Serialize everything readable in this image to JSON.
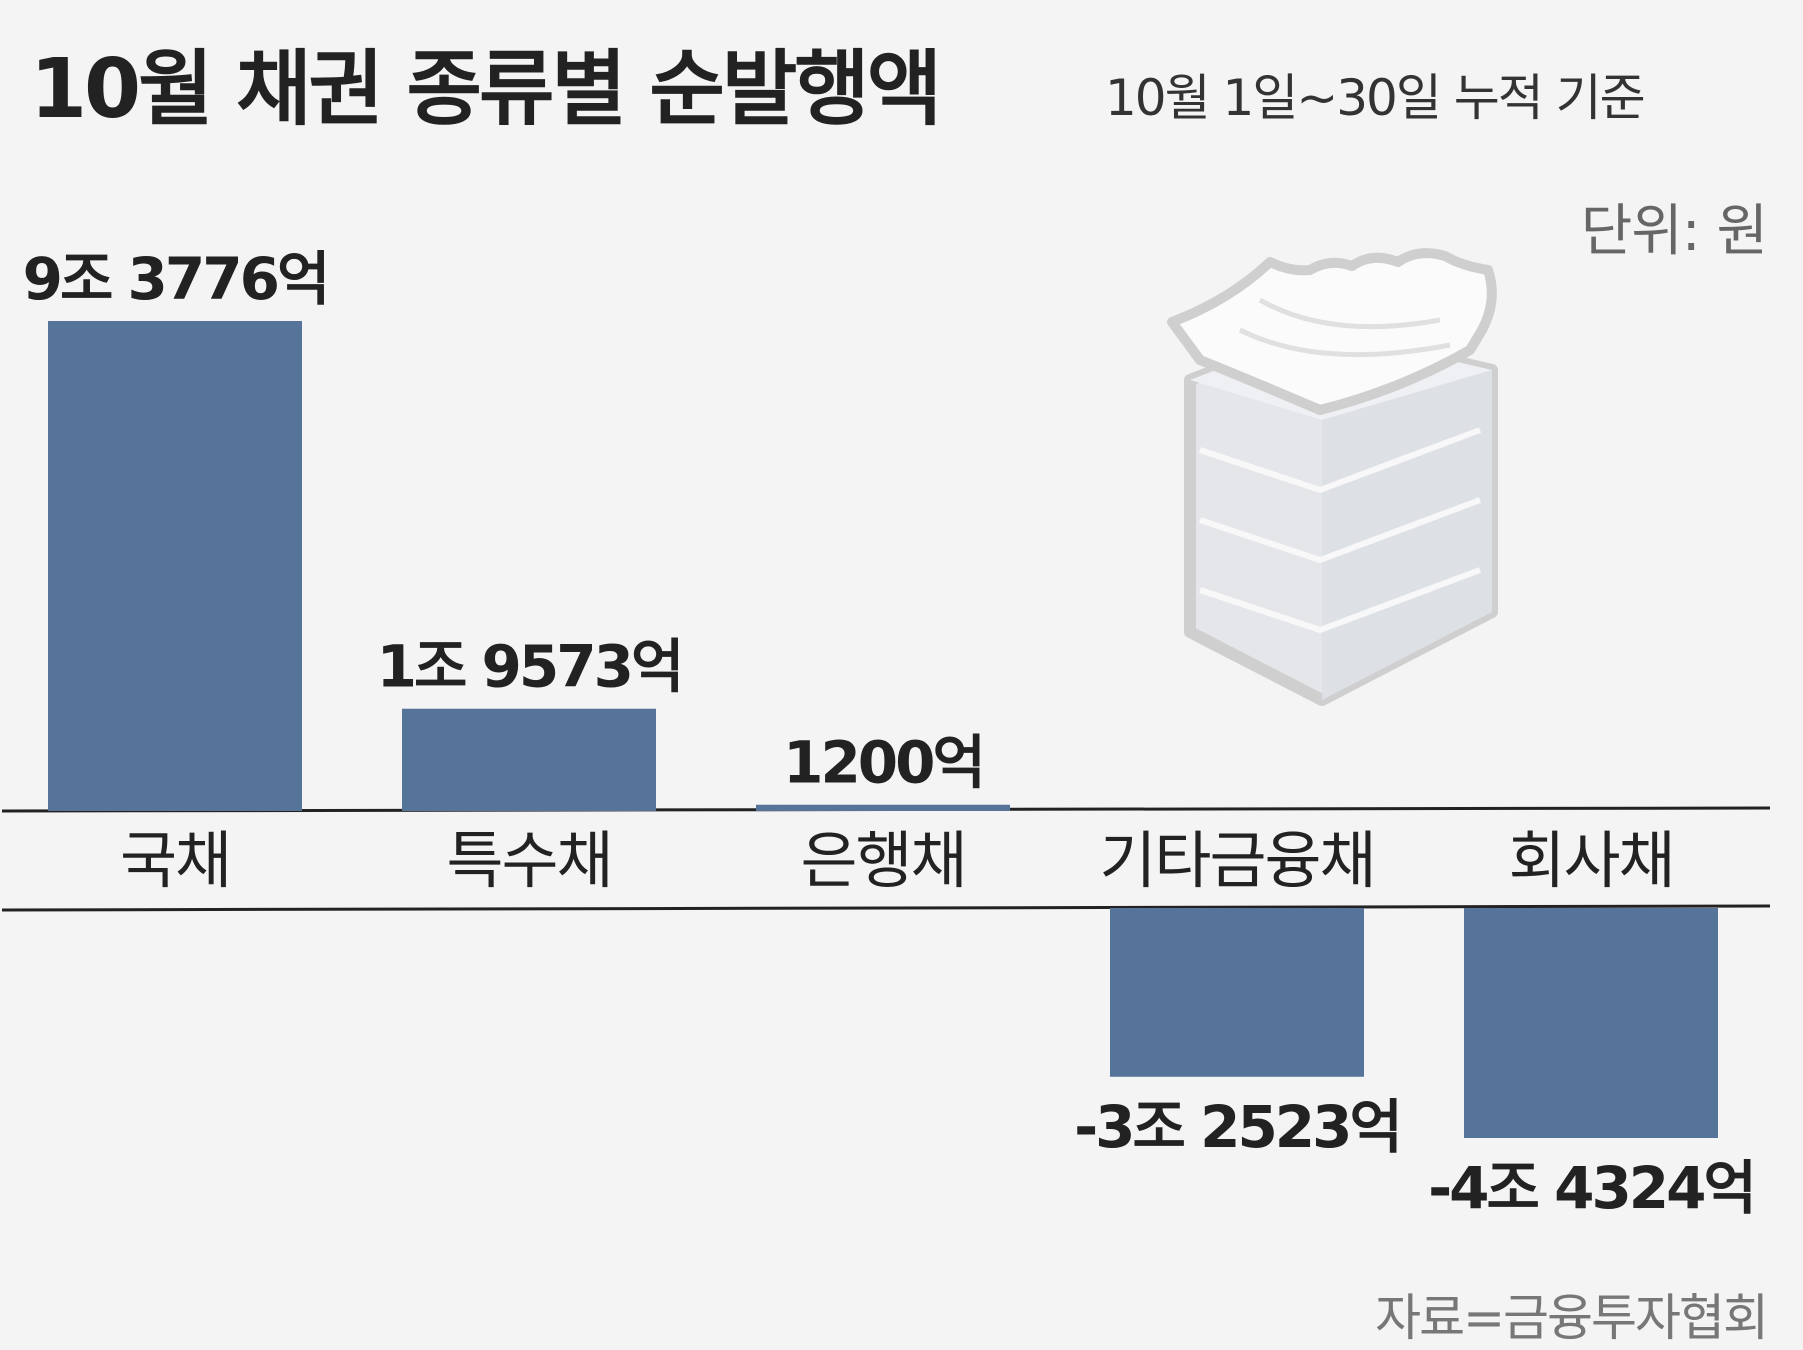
{
  "header": {
    "title": "10월 채권 종류별 순발행액",
    "subtitle": "10월 1일~30일 누적 기준",
    "unit": "단위: 원",
    "source": "자료=금융투자협회"
  },
  "colors": {
    "bar": "#56739a",
    "background": "#f4f4f4",
    "axis_line": "#222222",
    "text": "#222222"
  },
  "illustration": {
    "icon": "paper-stack-icon"
  },
  "chart_data": {
    "type": "bar",
    "title": "10월 채권 종류별 순발행액",
    "xlabel": "",
    "ylabel": "",
    "unit": "원",
    "categories": [
      "국채",
      "특수채",
      "은행채",
      "기타금융채",
      "회사채"
    ],
    "values": [
      9377600000000,
      1957300000000,
      120000000000,
      -3252300000000,
      -4432400000000
    ],
    "data_labels": [
      "9조 3776억",
      "1조 9573억",
      "1200억",
      "-3조 2523억",
      "-4조 4324억"
    ],
    "ylim": [
      -4432400000000,
      9377600000000
    ],
    "grid": false,
    "legend": "none"
  }
}
